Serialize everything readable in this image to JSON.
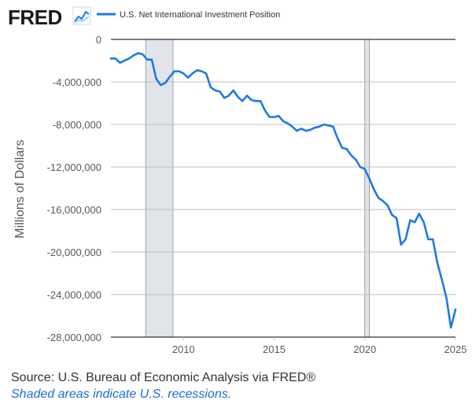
{
  "brand": {
    "logo_text": "FRED",
    "logo_icon": "line-chart-icon"
  },
  "colors": {
    "series": "#1f7ae0",
    "recession": "#e1e5ea",
    "grid": "#bfbfbf",
    "axis": "#000000",
    "text": "#595959",
    "note": "#1a6fd3"
  },
  "footer": {
    "source": "Source: U.S. Bureau of Economic Analysis via FRED®",
    "note": "Shaded areas indicate U.S. recessions."
  },
  "chart_data": {
    "type": "line",
    "title": "",
    "xlabel": "",
    "ylabel": "Millions of Dollars",
    "legend_position": "top-left",
    "grid": "horizontal",
    "xlim": [
      2006,
      2025
    ],
    "ylim": [
      -28000000,
      0
    ],
    "x_ticks": [
      2010,
      2015,
      2020,
      2025
    ],
    "y_ticks": [
      0,
      -4000000,
      -8000000,
      -12000000,
      -16000000,
      -20000000,
      -24000000,
      -28000000
    ],
    "y_tick_labels": [
      "0",
      "-4,000,000",
      "-8,000,000",
      "-12,000,000",
      "-16,000,000",
      "-20,000,000",
      "-24,000,000",
      "-28,000,000"
    ],
    "recessions": [
      [
        2007.92,
        2009.42
      ],
      [
        2020.0,
        2020.25
      ]
    ],
    "series": [
      {
        "name": "U.S. Net International Investment Position",
        "x": [
          2006.0,
          2006.25,
          2006.5,
          2006.75,
          2007.0,
          2007.25,
          2007.5,
          2007.75,
          2008.0,
          2008.25,
          2008.5,
          2008.75,
          2009.0,
          2009.25,
          2009.5,
          2009.75,
          2010.0,
          2010.25,
          2010.5,
          2010.75,
          2011.0,
          2011.25,
          2011.5,
          2011.75,
          2012.0,
          2012.25,
          2012.5,
          2012.75,
          2013.0,
          2013.25,
          2013.5,
          2013.75,
          2014.0,
          2014.25,
          2014.5,
          2014.75,
          2015.0,
          2015.25,
          2015.5,
          2015.75,
          2016.0,
          2016.25,
          2016.5,
          2016.75,
          2017.0,
          2017.25,
          2017.5,
          2017.75,
          2018.0,
          2018.25,
          2018.5,
          2018.75,
          2019.0,
          2019.25,
          2019.5,
          2019.75,
          2020.0,
          2020.25,
          2020.5,
          2020.75,
          2021.0,
          2021.25,
          2021.5,
          2021.75,
          2022.0,
          2022.25,
          2022.5,
          2022.75,
          2023.0,
          2023.25,
          2023.5,
          2023.75,
          2024.0,
          2024.25,
          2024.5,
          2024.75,
          2025.0
        ],
        "values": [
          -1800000,
          -1800000,
          -2200000,
          -2000000,
          -1800000,
          -1500000,
          -1300000,
          -1400000,
          -1900000,
          -1900000,
          -3700000,
          -4300000,
          -4100000,
          -3500000,
          -3000000,
          -3000000,
          -3200000,
          -3600000,
          -3200000,
          -2900000,
          -3000000,
          -3200000,
          -4500000,
          -4800000,
          -4900000,
          -5500000,
          -5300000,
          -4800000,
          -5400000,
          -5800000,
          -5300000,
          -5700000,
          -5800000,
          -5800000,
          -6700000,
          -7300000,
          -7300000,
          -7200000,
          -7700000,
          -7900000,
          -8200000,
          -8600000,
          -8400000,
          -8600000,
          -8500000,
          -8300000,
          -8200000,
          -8000000,
          -8100000,
          -8200000,
          -9300000,
          -10200000,
          -10300000,
          -10900000,
          -11300000,
          -12000000,
          -12200000,
          -13100000,
          -14100000,
          -14900000,
          -15200000,
          -15600000,
          -16500000,
          -16800000,
          -19300000,
          -18800000,
          -17000000,
          -17200000,
          -16400000,
          -17200000,
          -18800000,
          -18800000,
          -21000000,
          -22600000,
          -24300000,
          -27100000,
          -25400000
        ]
      }
    ]
  }
}
